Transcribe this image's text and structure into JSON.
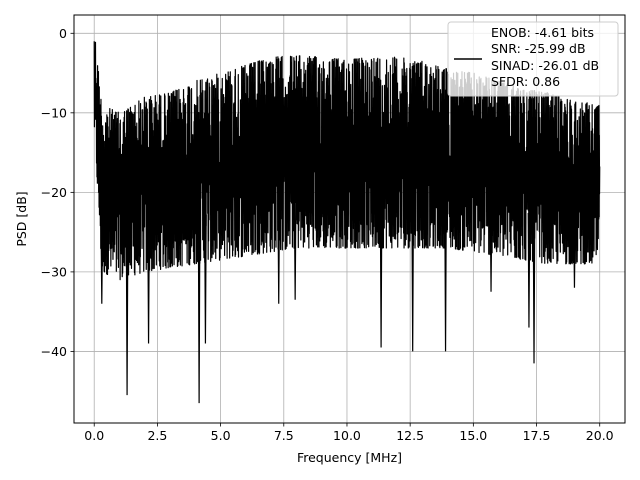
{
  "chart_data": {
    "type": "line",
    "title": "",
    "xlabel": "Frequency [MHz]",
    "ylabel": "PSD [dB]",
    "xlim": [
      -0.8,
      21.0
    ],
    "ylim": [
      -49,
      2.3
    ],
    "xticks": [
      0.0,
      2.5,
      5.0,
      7.5,
      10.0,
      12.5,
      15.0,
      17.5,
      20.0
    ],
    "xtick_labels": [
      "0.0",
      "2.5",
      "5.0",
      "7.5",
      "10.0",
      "12.5",
      "15.0",
      "17.5",
      "20.0"
    ],
    "yticks": [
      0,
      -10,
      -20,
      -30,
      -40
    ],
    "ytick_labels": [
      "0",
      "−10",
      "−20",
      "−30",
      "−40"
    ],
    "grid": true,
    "legend_position": "top-right",
    "legend_lines": [
      "ENOB: -4.61 bits",
      "SNR: -25.99 dB",
      "SINAD: -26.01 dB",
      "SFDR: 0.86"
    ],
    "series": [
      {
        "color": "#000000",
        "x_range": [
          0,
          20
        ],
        "upper_envelope": [
          [
            0,
            -1
          ],
          [
            0.05,
            -0.8
          ],
          [
            0.3,
            -9
          ],
          [
            1,
            -10
          ],
          [
            2,
            -8
          ],
          [
            3,
            -7.5
          ],
          [
            4,
            -6
          ],
          [
            5,
            -5
          ],
          [
            6,
            -4
          ],
          [
            7,
            -3
          ],
          [
            8,
            -2.8
          ],
          [
            9,
            -3
          ],
          [
            10,
            -3.3
          ],
          [
            11,
            -3
          ],
          [
            12,
            -3
          ],
          [
            13,
            -3.5
          ],
          [
            14,
            -4.5
          ],
          [
            15,
            -5
          ],
          [
            16,
            -6
          ],
          [
            17,
            -7
          ],
          [
            18,
            -7.5
          ],
          [
            19,
            -8.5
          ],
          [
            20,
            -9
          ]
        ],
        "lower_envelope": [
          [
            0,
            -12
          ],
          [
            0.3,
            -30
          ],
          [
            1,
            -31
          ],
          [
            2,
            -30
          ],
          [
            4,
            -29
          ],
          [
            6,
            -28
          ],
          [
            8,
            -27
          ],
          [
            10,
            -27
          ],
          [
            12,
            -27
          ],
          [
            14,
            -27
          ],
          [
            16,
            -28
          ],
          [
            18,
            -29
          ],
          [
            20,
            -29
          ]
        ],
        "deep_notches": [
          [
            0.3,
            -34
          ],
          [
            1.3,
            -45.5
          ],
          [
            2.15,
            -39
          ],
          [
            4.15,
            -46.5
          ],
          [
            4.4,
            -39
          ],
          [
            7.3,
            -34
          ],
          [
            7.95,
            -33.5
          ],
          [
            11.35,
            -39.5
          ],
          [
            12.6,
            -40
          ],
          [
            13.9,
            -40
          ],
          [
            15.7,
            -32.5
          ],
          [
            17.2,
            -37
          ],
          [
            17.4,
            -41.5
          ],
          [
            19,
            -32
          ]
        ]
      }
    ]
  }
}
